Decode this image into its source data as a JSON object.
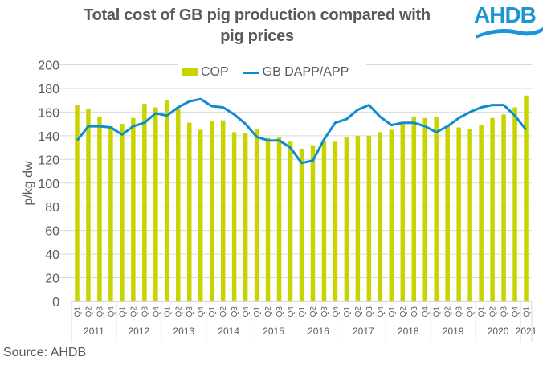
{
  "chart_data": {
    "type": "bar",
    "title": "Total cost of GB pig production  compared with pig prices",
    "title_lines": [
      "Total cost of GB pig production  compared with",
      "pig prices"
    ],
    "xlabel": "",
    "ylabel": "p/kg dw",
    "ylim": [
      0,
      200
    ],
    "yticks": [
      0,
      20,
      40,
      60,
      80,
      100,
      120,
      140,
      160,
      180,
      200
    ],
    "grid": true,
    "legend_position": "top-center",
    "categories": [
      "Q1",
      "Q2",
      "Q3",
      "Q4",
      "Q1",
      "Q2",
      "Q3",
      "Q4",
      "Q1",
      "Q2",
      "Q3",
      "Q4",
      "Q1",
      "Q2",
      "Q3",
      "Q4",
      "Q1",
      "Q2",
      "Q3",
      "Q4",
      "Q1",
      "Q2",
      "Q3",
      "Q4",
      "Q1",
      "Q2",
      "Q3",
      "Q4",
      "Q1",
      "Q2",
      "Q3",
      "Q4",
      "Q1",
      "Q2",
      "Q3",
      "Q4",
      "Q1",
      "Q2",
      "Q3",
      "Q4",
      "Q1"
    ],
    "years": [
      {
        "label": "2011",
        "count": 4
      },
      {
        "label": "2012",
        "count": 4
      },
      {
        "label": "2013",
        "count": 4
      },
      {
        "label": "2014",
        "count": 4
      },
      {
        "label": "2015",
        "count": 4
      },
      {
        "label": "2016",
        "count": 4
      },
      {
        "label": "2017",
        "count": 4
      },
      {
        "label": "2018",
        "count": 4
      },
      {
        "label": "2019",
        "count": 4
      },
      {
        "label": "2020",
        "count": 4
      },
      {
        "label": "2021",
        "count": 1
      }
    ],
    "series": [
      {
        "name": "COP",
        "type": "bar",
        "color": "#c8d400",
        "values": [
          166,
          163,
          156,
          148,
          150,
          155,
          167,
          164,
          170,
          163,
          151,
          145,
          152,
          153,
          143,
          142,
          146,
          138,
          139,
          135,
          129,
          132,
          135,
          135,
          139,
          140,
          140,
          143,
          145,
          150,
          156,
          155,
          156,
          148,
          147,
          146,
          149,
          155,
          158,
          164,
          174
        ]
      },
      {
        "name": "GB DAPP/APP",
        "type": "line",
        "color": "#0f8ccf",
        "values": [
          136,
          148,
          148,
          147,
          141,
          148,
          151,
          159,
          157,
          164,
          169,
          171,
          165,
          164,
          158,
          150,
          139,
          136,
          136,
          130,
          117,
          119,
          137,
          151,
          154,
          162,
          166,
          156,
          149,
          151,
          151,
          148,
          143,
          148,
          155,
          160,
          164,
          166,
          166,
          157,
          145
        ]
      }
    ]
  },
  "legend": {
    "items": [
      {
        "label": "COP"
      },
      {
        "label": "GB DAPP/APP"
      }
    ]
  },
  "logo": {
    "text": "AHDB",
    "color": "#1a95d5"
  },
  "source": "Source: AHDB"
}
